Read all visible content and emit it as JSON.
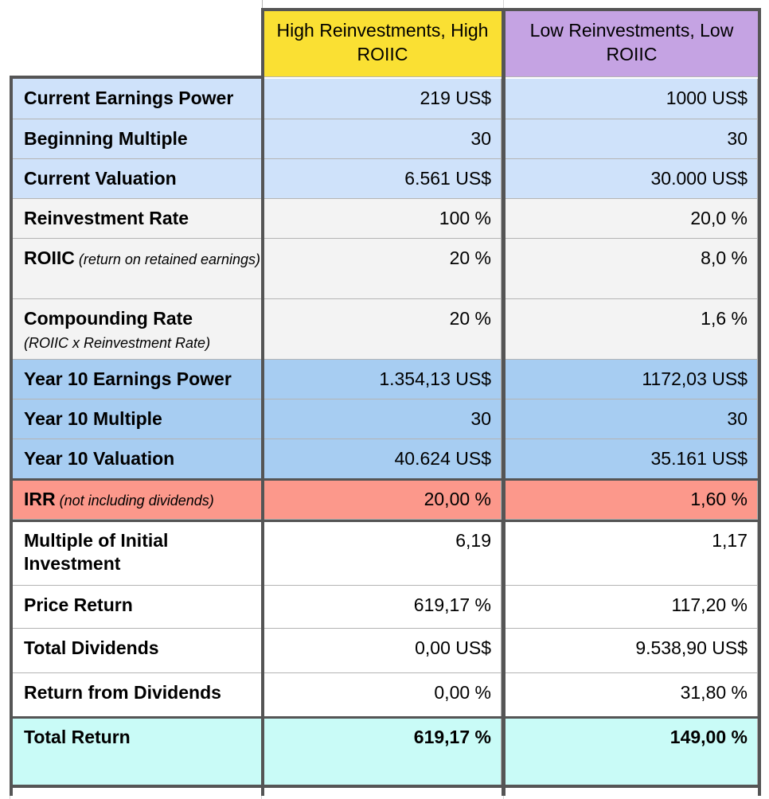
{
  "columns": {
    "high": "High Reinvestments, High ROIIC",
    "low": "Low Reinvestments, Low ROIIC"
  },
  "colors": {
    "header_high": "#fae033",
    "header_low": "#c5a3e3",
    "light_blue": "#cfe2fa",
    "gray": "#f3f3f3",
    "mid_blue": "#a7cdf2",
    "salmon": "#fc988b",
    "white": "#ffffff",
    "cyan": "#c9fbf7"
  },
  "rows": [
    {
      "label": "Current Earnings Power",
      "sub": "",
      "high": "219 US$",
      "low": "1000 US$"
    },
    {
      "label": "Beginning Multiple",
      "sub": "",
      "high": "30",
      "low": "30"
    },
    {
      "label": "Current Valuation",
      "sub": "",
      "high": "6.561 US$",
      "low": "30.000 US$"
    },
    {
      "label": "Reinvestment Rate",
      "sub": "",
      "high": "100 %",
      "low": "20,0 %"
    },
    {
      "label": "ROIIC",
      "sub": " (return on retained earnings)",
      "high": "20 %",
      "low": "8,0 %"
    },
    {
      "label": "Compounding Rate",
      "sub": "(ROIIC x Reinvestment Rate)",
      "high": "20 %",
      "low": "1,6 %"
    },
    {
      "label": "Year 10 Earnings Power",
      "sub": "",
      "high": "1.354,13 US$",
      "low": "1172,03 US$"
    },
    {
      "label": "Year 10 Multiple",
      "sub": "",
      "high": "30",
      "low": "30"
    },
    {
      "label": "Year 10 Valuation",
      "sub": "",
      "high": "40.624 US$",
      "low": "35.161 US$"
    },
    {
      "label": "IRR",
      "sub": " (not including dividends)",
      "high": "20,00 %",
      "low": "1,60 %"
    },
    {
      "label": "Multiple of Initial Investment",
      "sub": "",
      "high": "6,19",
      "low": "1,17"
    },
    {
      "label": "Price Return",
      "sub": "",
      "high": "619,17 %",
      "low": "117,20 %"
    },
    {
      "label": "Total Dividends",
      "sub": "",
      "high": "0,00 US$",
      "low": "9.538,90 US$"
    },
    {
      "label": "Return from Dividends",
      "sub": "",
      "high": "0,00 %",
      "low": "31,80 %"
    },
    {
      "label": "Total Return",
      "sub": "",
      "high": "619,17 %",
      "low": "149,00 %"
    }
  ]
}
